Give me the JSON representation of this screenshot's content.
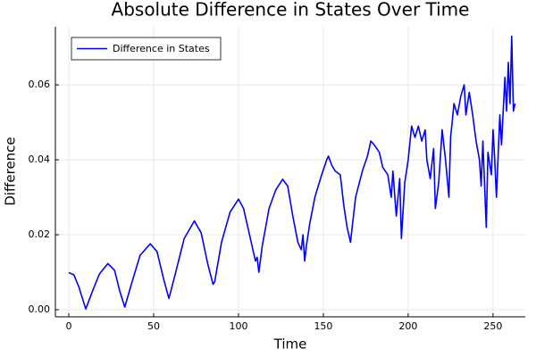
{
  "chart_data": {
    "type": "line",
    "title": "Absolute Difference in States Over Time",
    "x_label": "Time",
    "y_label": "Difference",
    "x": [
      0,
      3,
      6,
      10,
      14,
      18,
      23,
      27,
      30,
      33,
      37,
      42,
      48,
      52,
      56,
      59,
      63,
      68,
      74,
      78,
      82,
      85,
      86,
      90,
      95,
      100,
      103,
      107,
      110,
      111,
      112,
      114,
      118,
      122,
      126,
      129,
      132,
      135,
      137,
      138,
      139,
      140,
      142,
      145,
      149,
      152,
      153,
      155,
      157,
      160,
      162,
      164,
      166,
      167,
      169,
      173,
      176,
      178,
      180,
      183,
      185,
      188,
      190,
      191,
      193,
      195,
      196,
      198,
      200,
      202,
      204,
      206,
      208,
      210,
      211,
      213,
      215,
      216,
      218,
      220,
      222,
      224,
      225,
      227,
      229,
      231,
      233,
      234,
      236,
      238,
      240,
      242,
      243,
      244,
      246,
      247,
      249,
      250,
      251,
      252,
      254,
      255,
      257,
      258,
      259,
      260,
      261,
      262,
      263
    ],
    "series": [
      {
        "name": "Difference in States",
        "color": "#0000ff",
        "values": [
          0.0099,
          0.0093,
          0.006,
          0.0002,
          0.005,
          0.0095,
          0.0123,
          0.0105,
          0.005,
          0.0007,
          0.007,
          0.0145,
          0.0176,
          0.0155,
          0.008,
          0.003,
          0.01,
          0.019,
          0.0237,
          0.0205,
          0.012,
          0.0068,
          0.0075,
          0.018,
          0.026,
          0.0295,
          0.027,
          0.019,
          0.013,
          0.014,
          0.01,
          0.017,
          0.027,
          0.032,
          0.0348,
          0.033,
          0.025,
          0.018,
          0.016,
          0.02,
          0.013,
          0.017,
          0.023,
          0.03,
          0.036,
          0.04,
          0.041,
          0.0385,
          0.037,
          0.036,
          0.028,
          0.022,
          0.018,
          0.022,
          0.03,
          0.037,
          0.041,
          0.045,
          0.044,
          0.042,
          0.038,
          0.036,
          0.03,
          0.037,
          0.025,
          0.035,
          0.019,
          0.034,
          0.04,
          0.049,
          0.046,
          0.049,
          0.045,
          0.048,
          0.04,
          0.035,
          0.043,
          0.027,
          0.034,
          0.048,
          0.04,
          0.03,
          0.046,
          0.055,
          0.052,
          0.057,
          0.06,
          0.052,
          0.058,
          0.052,
          0.045,
          0.04,
          0.033,
          0.045,
          0.022,
          0.042,
          0.036,
          0.048,
          0.04,
          0.03,
          0.052,
          0.044,
          0.062,
          0.053,
          0.066,
          0.055,
          0.073,
          0.053,
          0.055
        ]
      }
    ],
    "xlim": [
      -7.9,
      269
    ],
    "ylim": [
      -0.0019,
      0.0755
    ],
    "xticks": [
      0,
      50,
      100,
      150,
      200,
      250
    ],
    "yticks": [
      {
        "value": 0,
        "label": "0.00"
      },
      0.02,
      0.04,
      0.06
    ],
    "grid": true,
    "legend": "top-left"
  }
}
